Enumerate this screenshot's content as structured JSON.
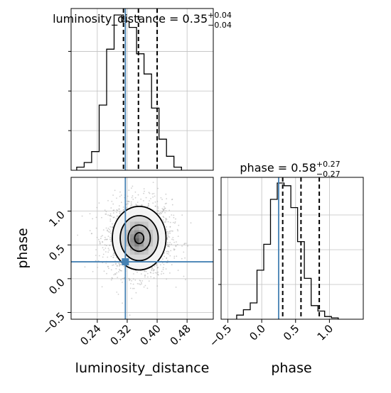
{
  "chart_data": {
    "type": "corner",
    "truth": {
      "luminosity_distance": 0.315,
      "phase": 0.25
    },
    "parameters": [
      {
        "name": "luminosity_distance",
        "title_prefix": "luminosity_distance = ",
        "median_text": "0.35",
        "upper_text": "+0.04",
        "lower_text": "−0.04",
        "median": 0.35,
        "q16": 0.31,
        "q84": 0.4,
        "range": [
          0.17,
          0.55
        ],
        "ticks": [
          0.24,
          0.32,
          0.4,
          0.48
        ],
        "tick_labels": [
          "0.24",
          "0.32",
          "0.40",
          "0.48"
        ],
        "histogram": {
          "bin_start": 0.185,
          "bin_width": 0.02,
          "counts": [
            0.02,
            0.05,
            0.12,
            0.42,
            0.78,
            1.0,
            0.96,
            0.92,
            0.75,
            0.62,
            0.4,
            0.2,
            0.09,
            0.02
          ]
        }
      },
      {
        "name": "phase",
        "title_prefix": "phase = ",
        "median_text": "0.58",
        "upper_text": "+0.27",
        "lower_text": "−0.27",
        "median": 0.58,
        "q16": 0.31,
        "q84": 0.85,
        "range": [
          -0.6,
          1.5
        ],
        "ticks": [
          -0.5,
          0.0,
          0.5,
          1.0
        ],
        "tick_labels": [
          "−0.5",
          "0.0",
          "0.5",
          "1.0"
        ],
        "histogram": {
          "bin_start": -0.37,
          "bin_width": 0.1,
          "counts": [
            0.03,
            0.07,
            0.12,
            0.36,
            0.55,
            0.88,
            1.0,
            0.98,
            0.82,
            0.57,
            0.3,
            0.1,
            0.06,
            0.02,
            0.01
          ]
        }
      }
    ],
    "xlabels": [
      "luminosity_distance",
      "phase"
    ],
    "ylabel": "phase",
    "scatter_ticks_y": [
      -0.5,
      0.0,
      0.5,
      1.0
    ],
    "scatter_ticks_y_labels": [
      "−0.5",
      "0.0",
      "0.5",
      "1.0"
    ],
    "density_center": {
      "x": 0.352,
      "y": 0.6
    },
    "density_spread": {
      "x": 0.035,
      "y": 0.27
    },
    "colors": {
      "truth": "#4682b4",
      "hist": "#000000",
      "grid": "#c0c0c0",
      "scatter": "#aaaaaa"
    },
    "grid": true
  }
}
